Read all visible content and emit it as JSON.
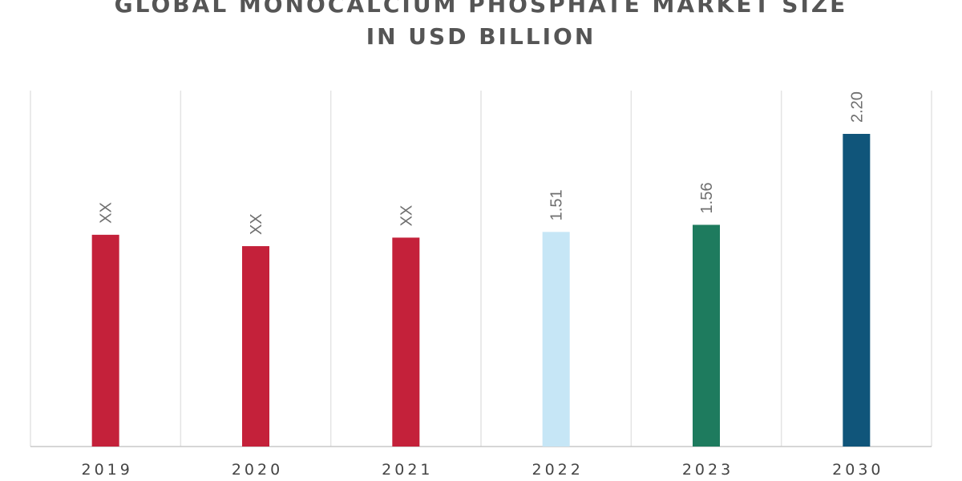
{
  "chart_data": {
    "type": "bar",
    "title_lines": [
      "GLOBAL MONOCALCIUM PHOSPHATE MARKET SIZE",
      "IN USD BILLION"
    ],
    "categories": [
      "2019",
      "2020",
      "2021",
      "2022",
      "2023",
      "2030"
    ],
    "values": [
      1.49,
      1.41,
      1.47,
      1.51,
      1.56,
      2.2
    ],
    "data_labels": [
      "XX",
      "XX",
      "XX",
      "1.51",
      "1.56",
      "2.20"
    ],
    "colors": [
      "#c4213a",
      "#c4213a",
      "#c4213a",
      "#c6e6f6",
      "#1e7b5e",
      "#10557a"
    ],
    "ylim": [
      0,
      2.2
    ],
    "grid": "vertical",
    "legend": "none",
    "xlabel": "",
    "ylabel": ""
  }
}
